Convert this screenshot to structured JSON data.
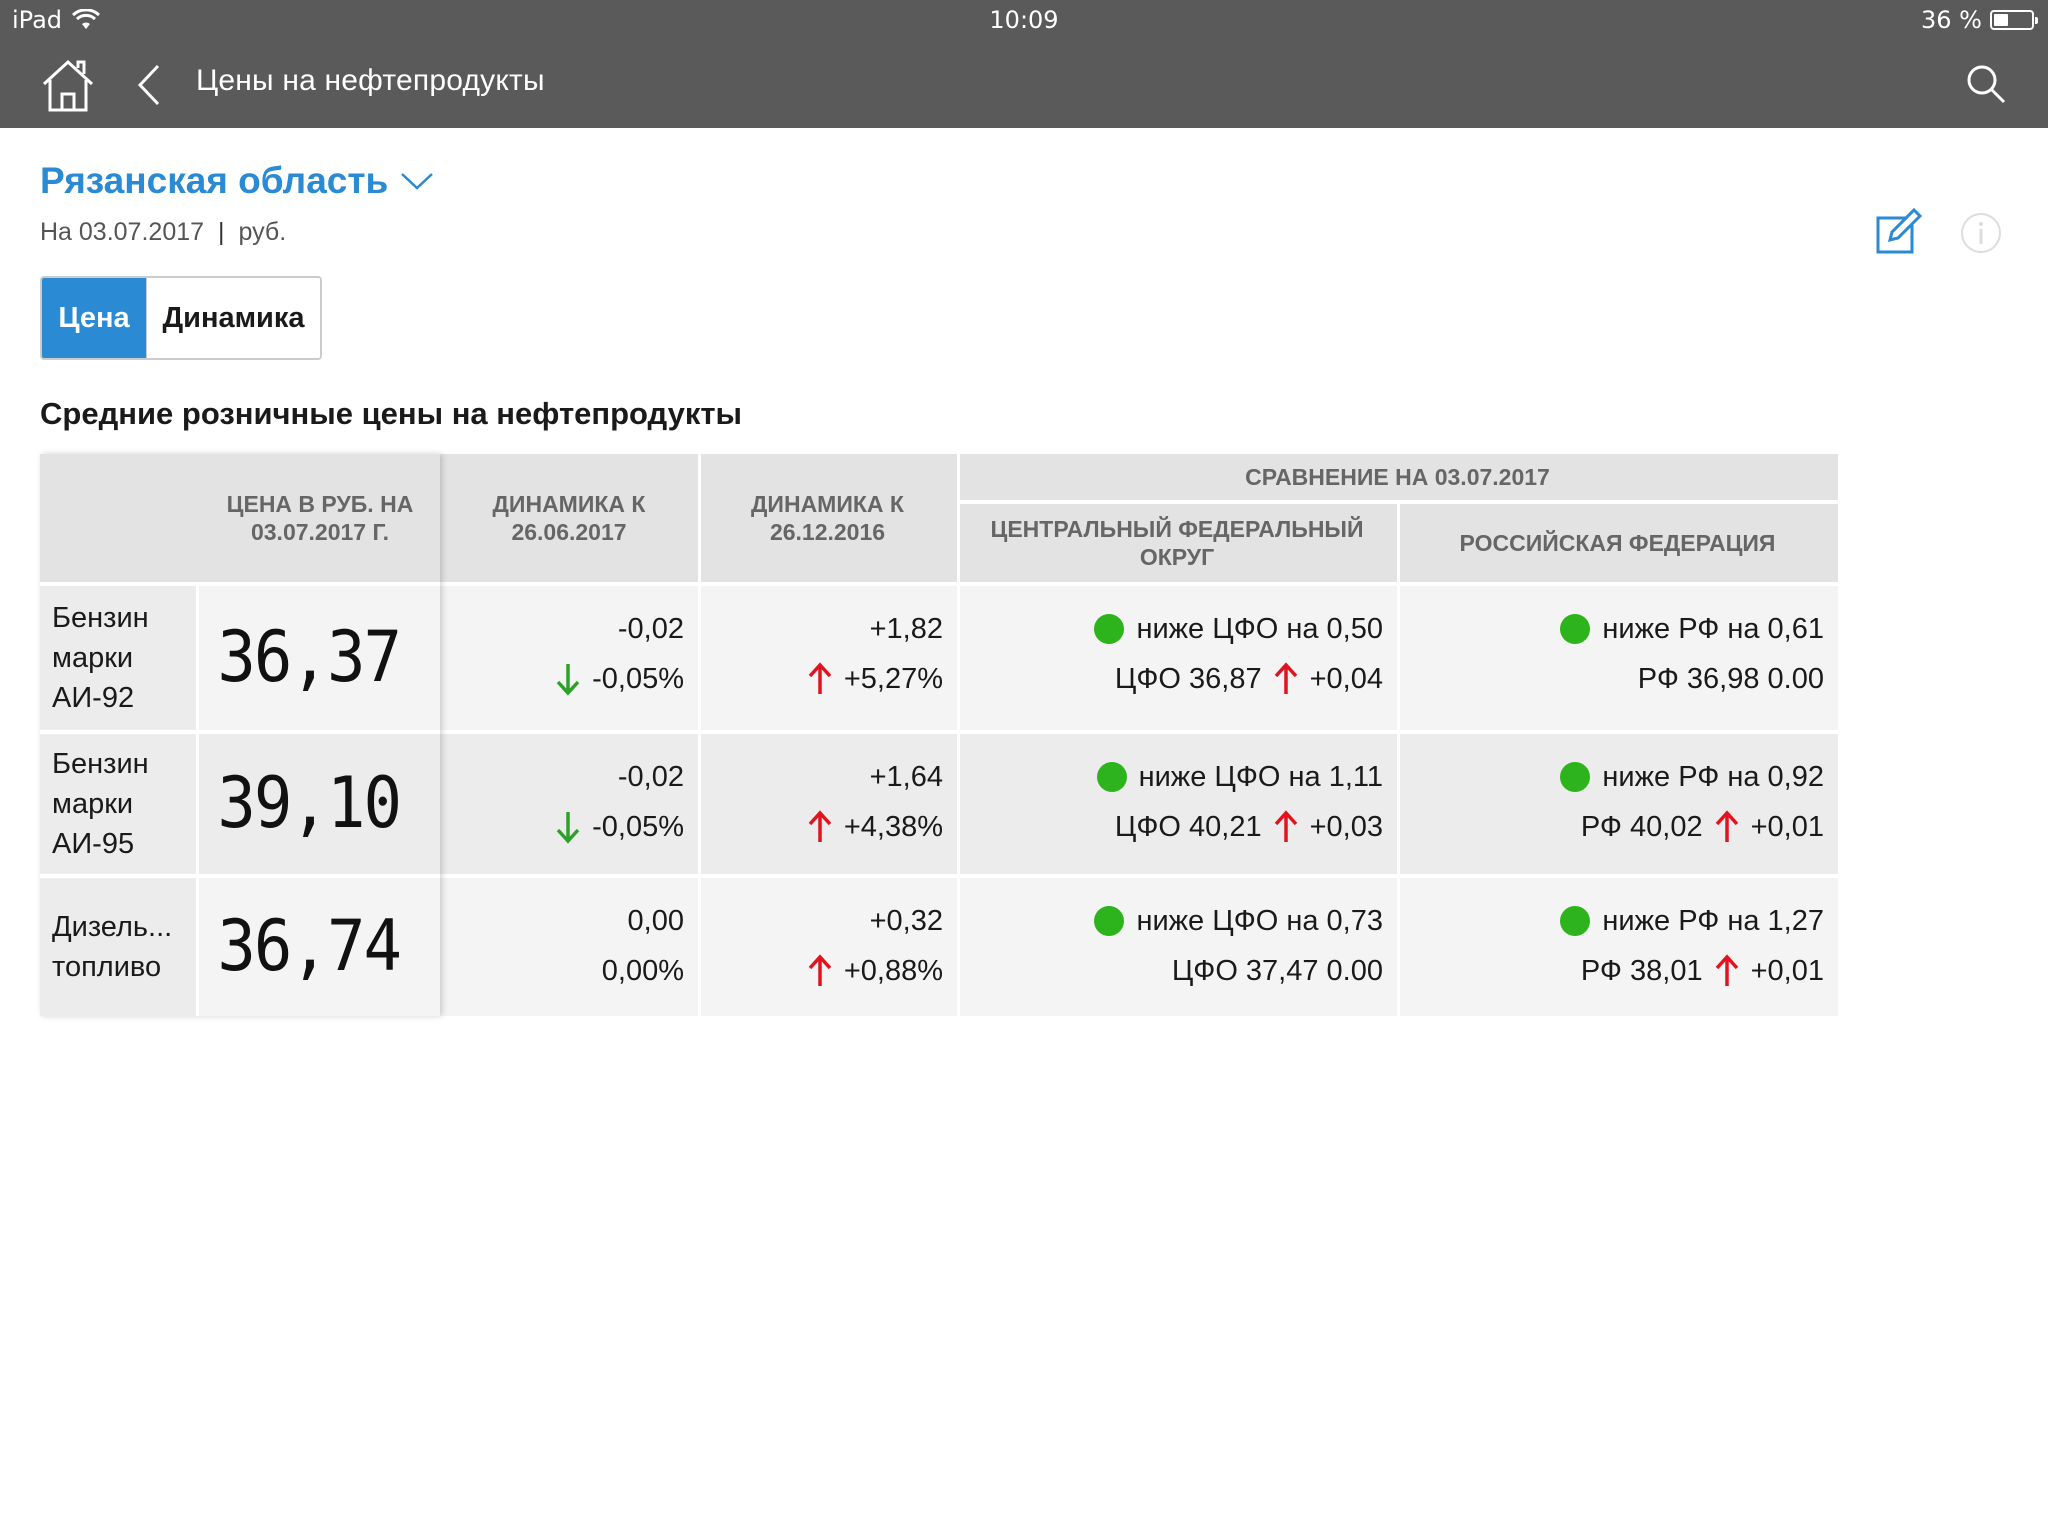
{
  "status_bar": {
    "device": "iPad",
    "time": "10:09",
    "battery": "36 %"
  },
  "nav": {
    "title": "Цены на нефтепродукты"
  },
  "region": {
    "name": "Рязанская область",
    "date": "На 03.07.2017",
    "separator": "|",
    "unit": "руб."
  },
  "tabs": {
    "active": "Цена",
    "inactive": "Динамика"
  },
  "section_title": "Средние розничные цены на нефтепродукты",
  "table": {
    "headers": {
      "price": "ЦЕНА В РУБ. НА 03.07.2017 Г.",
      "dyn1": "ДИНАМИКА К 26.06.2017",
      "dyn2": "ДИНАМИКА К 26.12.2016",
      "compare": "СРАВНЕНИЕ НА 03.07.2017",
      "cfo": "ЦЕНТРАЛЬНЫЙ ФЕДЕРАЛЬНЫЙ ОКРУГ",
      "rf": "РОССИЙСКАЯ ФЕДЕРАЦИЯ"
    },
    "rows": [
      {
        "name": "Бензин марки АИ-92",
        "price": "36,37",
        "dyn1_abs": "-0,02",
        "dyn1_pct": "-0,05%",
        "dyn2_abs": "+1,82",
        "dyn2_pct": "+5,27%",
        "cfo_cmp": "ниже ЦФО на 0,50",
        "cfo_val": "ЦФО 36,87",
        "cfo_delta": "+0,04",
        "rf_cmp": "ниже РФ на 0,61",
        "rf_val": "РФ 36,98 0.00"
      },
      {
        "name": "Бензин марки АИ-95",
        "price": "39,10",
        "dyn1_abs": "-0,02",
        "dyn1_pct": "-0,05%",
        "dyn2_abs": "+1,64",
        "dyn2_pct": "+4,38%",
        "cfo_cmp": "ниже ЦФО на 1,11",
        "cfo_val": "ЦФО 40,21",
        "cfo_delta": "+0,03",
        "rf_cmp": "ниже РФ на 0,92",
        "rf_val": "РФ 40,02",
        "rf_delta": "+0,01"
      },
      {
        "name": "Дизель... топливо",
        "price": "36,74",
        "dyn1_abs": "0,00",
        "dyn1_pct": "0,00%",
        "dyn2_abs": "+0,32",
        "dyn2_pct": "+0,88%",
        "cfo_cmp": "ниже ЦФО на 0,73",
        "cfo_val": "ЦФО 37,47 0.00",
        "rf_cmp": "ниже РФ на 1,27",
        "rf_val": "РФ 38,01",
        "rf_delta": "+0,01"
      }
    ]
  },
  "colors": {
    "accent": "#2a8ad3",
    "bar": "#5a5a5a",
    "up": "#e0141e",
    "down": "#2ea12a",
    "dot": "#2db31b"
  }
}
